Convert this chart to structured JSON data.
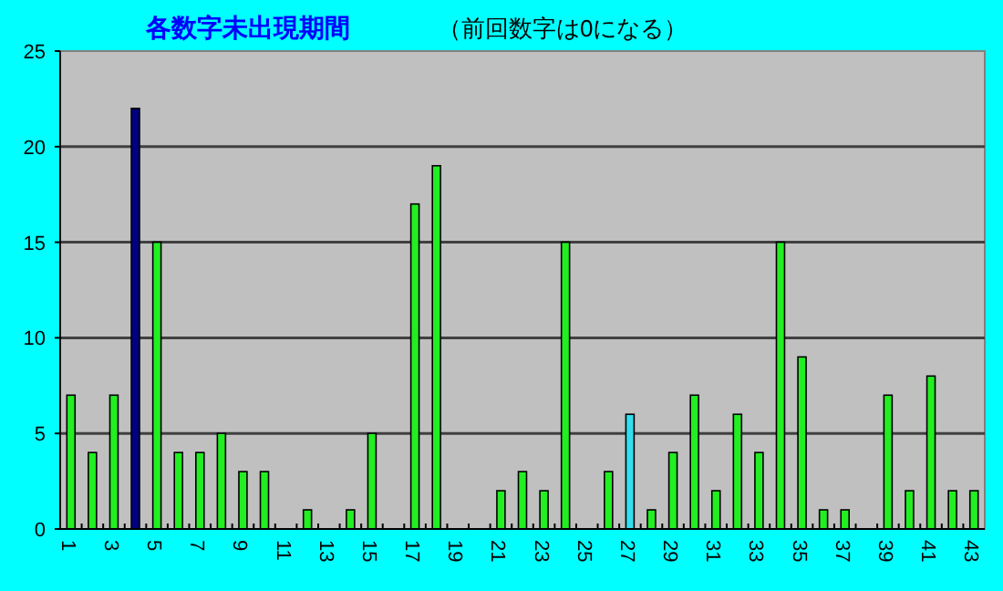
{
  "chart_data": {
    "type": "bar",
    "title": "各数字未出現期間",
    "subtitle": "（前回数字は0になる）",
    "categories": [
      "1",
      null,
      "3",
      null,
      "5",
      null,
      "7",
      null,
      "9",
      null,
      "11",
      null,
      "13",
      null,
      "15",
      null,
      "17",
      null,
      "19",
      null,
      "21",
      null,
      "23",
      null,
      "25",
      null,
      "27",
      null,
      "29",
      null,
      "31",
      null,
      "33",
      null,
      "35",
      null,
      "37",
      null,
      "39",
      null,
      "41",
      null,
      "43"
    ],
    "values": [
      7,
      4,
      7,
      22,
      15,
      4,
      4,
      5,
      3,
      3,
      0,
      1,
      0,
      1,
      5,
      0,
      17,
      19,
      0,
      0,
      2,
      3,
      2,
      15,
      0,
      3,
      6,
      1,
      4,
      7,
      2,
      6,
      4,
      15,
      9,
      1,
      1,
      0,
      7,
      2,
      8,
      2,
      2
    ],
    "colors": [
      "#22ee22",
      "#22ee22",
      "#22ee22",
      "#000080",
      "#22ee22",
      "#22ee22",
      "#22ee22",
      "#22ee22",
      "#22ee22",
      "#22ee22",
      "#22ee22",
      "#22ee22",
      "#22ee22",
      "#22ee22",
      "#22ee22",
      "#22ee22",
      "#22ee22",
      "#22ee22",
      "#22ee22",
      "#22ee22",
      "#22ee22",
      "#22ee22",
      "#22ee22",
      "#22ee22",
      "#22ee22",
      "#22ee22",
      "#33ddee",
      "#22ee22",
      "#22ee22",
      "#22ee22",
      "#22ee22",
      "#22ee22",
      "#22ee22",
      "#22ee22",
      "#22ee22",
      "#22ee22",
      "#22ee22",
      "#22ee22",
      "#22ee22",
      "#22ee22",
      "#22ee22",
      "#22ee22",
      "#22ee22"
    ],
    "ylim": [
      0,
      25
    ],
    "yticks": [
      0,
      5,
      10,
      15,
      20,
      25
    ],
    "grid": "y"
  }
}
